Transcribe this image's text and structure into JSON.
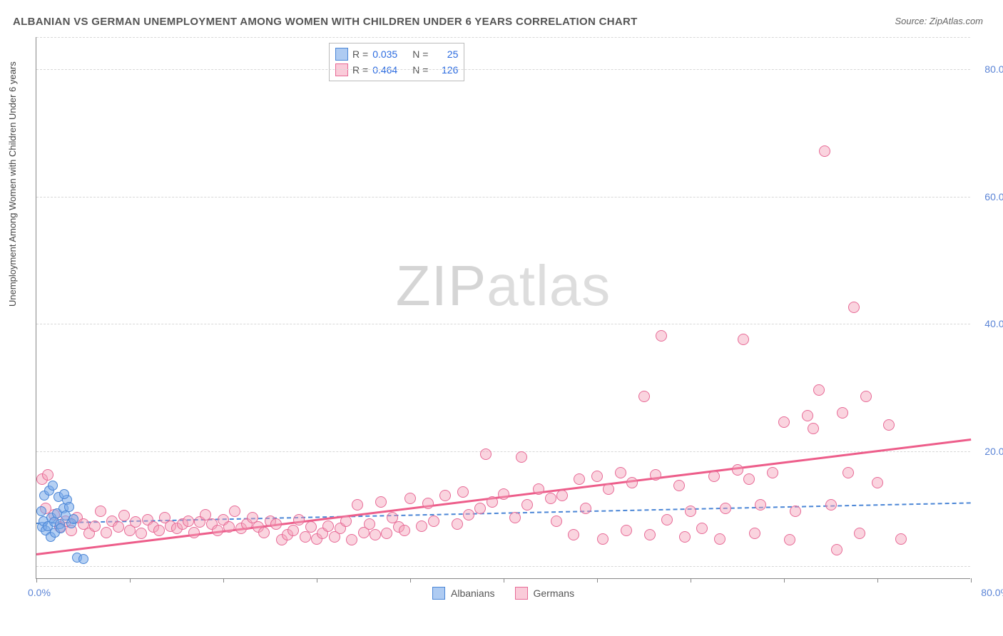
{
  "title": "ALBANIAN VS GERMAN UNEMPLOYMENT AMONG WOMEN WITH CHILDREN UNDER 6 YEARS CORRELATION CHART",
  "source": "Source: ZipAtlas.com",
  "ylabel": "Unemployment Among Women with Children Under 6 years",
  "watermark_a": "ZIP",
  "watermark_b": "atlas",
  "chart": {
    "type": "scatter",
    "xlim": [
      0,
      80
    ],
    "ylim": [
      0,
      85
    ],
    "x_origin_label": "0.0%",
    "x_max_label": "80.0%",
    "y_ticks": [
      {
        "v": 20,
        "label": "20.0%"
      },
      {
        "v": 40,
        "label": "40.0%"
      },
      {
        "v": 60,
        "label": "60.0%"
      },
      {
        "v": 80,
        "label": "80.0%"
      }
    ],
    "grid_extra_y": [
      2,
      85
    ],
    "xtick_positions": [
      0,
      8,
      16,
      24,
      32,
      40,
      48,
      56,
      64,
      72,
      80
    ],
    "grid_color": "#d8d8d8",
    "background_color": "#ffffff",
    "series": [
      {
        "name": "Albanians",
        "color_fill": "rgba(120,169,233,0.55)",
        "color_stroke": "#4b86d6",
        "class": "blue",
        "r_label": "R =",
        "r_value": "0.035",
        "n_label": "N =",
        "n_value": "25",
        "trend": {
          "x1": 0,
          "y1": 8.8,
          "x2": 80,
          "y2": 12.0,
          "style": "dashed",
          "width": 2
        },
        "points": [
          [
            0.5,
            8
          ],
          [
            0.6,
            9
          ],
          [
            0.8,
            7.5
          ],
          [
            1.0,
            8.2
          ],
          [
            1.2,
            6.5
          ],
          [
            1.3,
            9.5
          ],
          [
            1.5,
            8.8
          ],
          [
            1.6,
            7.2
          ],
          [
            1.8,
            10.2
          ],
          [
            2.0,
            8.5
          ],
          [
            2.1,
            7.8
          ],
          [
            2.3,
            11
          ],
          [
            2.5,
            9.8
          ],
          [
            2.6,
            12.3
          ],
          [
            2.8,
            11.2
          ],
          [
            3.0,
            8.6
          ],
          [
            3.2,
            9.3
          ],
          [
            0.7,
            13
          ],
          [
            1.1,
            13.8
          ],
          [
            1.4,
            14.5
          ],
          [
            3.5,
            3.2
          ],
          [
            4.0,
            3.0
          ],
          [
            1.9,
            12.8
          ],
          [
            2.4,
            13.2
          ],
          [
            0.4,
            10.5
          ]
        ]
      },
      {
        "name": "Germans",
        "color_fill": "rgba(245,160,185,0.45)",
        "color_stroke": "#e76a96",
        "class": "pink",
        "r_label": "R =",
        "r_value": "0.464",
        "n_label": "N =",
        "n_value": "126",
        "trend": {
          "x1": 0,
          "y1": 4.0,
          "x2": 80,
          "y2": 22.0,
          "style": "solid",
          "width": 3
        },
        "points": [
          [
            0.5,
            15.5
          ],
          [
            1,
            16.2
          ],
          [
            0.8,
            11
          ],
          [
            1.5,
            10
          ],
          [
            2,
            8
          ],
          [
            2.5,
            9
          ],
          [
            3,
            7.5
          ],
          [
            3.5,
            9.5
          ],
          [
            4,
            8.5
          ],
          [
            4.5,
            7
          ],
          [
            5,
            8.2
          ],
          [
            5.5,
            10.5
          ],
          [
            6,
            7.2
          ],
          [
            6.5,
            9
          ],
          [
            7,
            8
          ],
          [
            7.5,
            9.8
          ],
          [
            8,
            7.5
          ],
          [
            8.5,
            8.8
          ],
          [
            9,
            7
          ],
          [
            9.5,
            9.2
          ],
          [
            10,
            8
          ],
          [
            10.5,
            7.5
          ],
          [
            11,
            9.5
          ],
          [
            11.5,
            8.2
          ],
          [
            12,
            7.8
          ],
          [
            12.5,
            8.5
          ],
          [
            13,
            9
          ],
          [
            13.5,
            7.2
          ],
          [
            14,
            8.8
          ],
          [
            14.5,
            10
          ],
          [
            15,
            8.5
          ],
          [
            15.5,
            7.5
          ],
          [
            16,
            9.2
          ],
          [
            16.5,
            8
          ],
          [
            17,
            10.5
          ],
          [
            17.5,
            7.8
          ],
          [
            18,
            8.5
          ],
          [
            18.5,
            9.5
          ],
          [
            19,
            8
          ],
          [
            19.5,
            7.2
          ],
          [
            20,
            9
          ],
          [
            20.5,
            8.5
          ],
          [
            21,
            6
          ],
          [
            21.5,
            6.8
          ],
          [
            22,
            7.5
          ],
          [
            22.5,
            9.2
          ],
          [
            23,
            6.5
          ],
          [
            23.5,
            8
          ],
          [
            24,
            6.2
          ],
          [
            24.5,
            7
          ],
          [
            25,
            8.2
          ],
          [
            25.5,
            6.5
          ],
          [
            26,
            7.8
          ],
          [
            26.5,
            9
          ],
          [
            27,
            6
          ],
          [
            27.5,
            11.5
          ],
          [
            28,
            7.2
          ],
          [
            28.5,
            8.5
          ],
          [
            29,
            6.8
          ],
          [
            29.5,
            12
          ],
          [
            30,
            7
          ],
          [
            30.5,
            9.5
          ],
          [
            31,
            8
          ],
          [
            31.5,
            7.5
          ],
          [
            32,
            12.5
          ],
          [
            33,
            8.2
          ],
          [
            33.5,
            11.8
          ],
          [
            34,
            9
          ],
          [
            35,
            13
          ],
          [
            36,
            8.5
          ],
          [
            36.5,
            13.5
          ],
          [
            37,
            10
          ],
          [
            38,
            11
          ],
          [
            38.5,
            19.5
          ],
          [
            39,
            12
          ],
          [
            40,
            13.2
          ],
          [
            41,
            9.5
          ],
          [
            41.5,
            19
          ],
          [
            42,
            11.5
          ],
          [
            43,
            14
          ],
          [
            44,
            12.5
          ],
          [
            44.5,
            9
          ],
          [
            45,
            13
          ],
          [
            46,
            6.8
          ],
          [
            46.5,
            15.5
          ],
          [
            47,
            11
          ],
          [
            48,
            16
          ],
          [
            48.5,
            6.2
          ],
          [
            49,
            14
          ],
          [
            50,
            16.5
          ],
          [
            50.5,
            7.5
          ],
          [
            51,
            15
          ],
          [
            52,
            28.5
          ],
          [
            52.5,
            6.8
          ],
          [
            53,
            16.2
          ],
          [
            53.5,
            38
          ],
          [
            54,
            9.2
          ],
          [
            55,
            14.5
          ],
          [
            55.5,
            6.5
          ],
          [
            56,
            10.5
          ],
          [
            57,
            7.8
          ],
          [
            58,
            16
          ],
          [
            58.5,
            6.2
          ],
          [
            59,
            11
          ],
          [
            60,
            17
          ],
          [
            60.5,
            37.5
          ],
          [
            61,
            15.5
          ],
          [
            61.5,
            7
          ],
          [
            62,
            11.5
          ],
          [
            63,
            16.5
          ],
          [
            64,
            24.5
          ],
          [
            64.5,
            6
          ],
          [
            65,
            10.5
          ],
          [
            66,
            25.5
          ],
          [
            66.5,
            23.5
          ],
          [
            67,
            29.5
          ],
          [
            67.5,
            67
          ],
          [
            68,
            11.5
          ],
          [
            69,
            26
          ],
          [
            69.5,
            16.5
          ],
          [
            70,
            42.5
          ],
          [
            71,
            28.5
          ],
          [
            72,
            15
          ],
          [
            73,
            24
          ],
          [
            74,
            6.2
          ],
          [
            68.5,
            4.5
          ],
          [
            70.5,
            7
          ]
        ]
      }
    ]
  },
  "legend": {
    "items": [
      {
        "swatch": "blue",
        "label": "Albanians"
      },
      {
        "swatch": "pink",
        "label": "Germans"
      }
    ]
  }
}
